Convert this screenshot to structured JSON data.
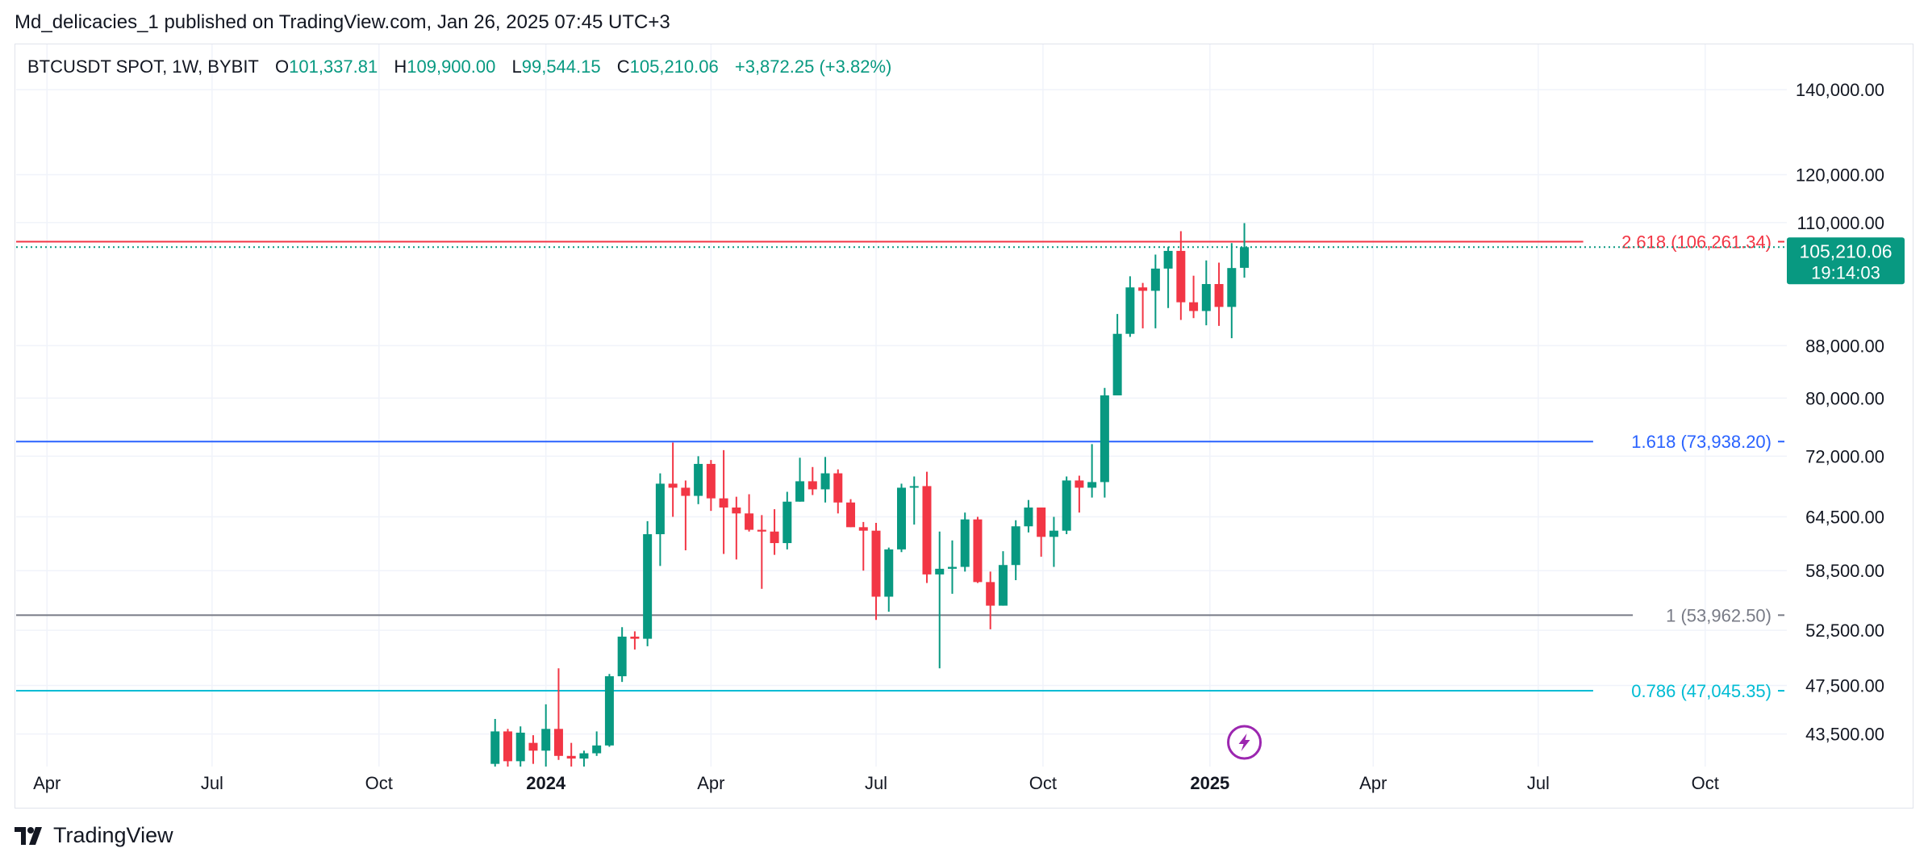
{
  "header": {
    "published": "Md_delicacies_1 published on TradingView.com, Jan 26, 2025 07:45 UTC+3"
  },
  "legend": {
    "symbol": "BTCUSDT SPOT, 1W, BYBIT",
    "o_key": "O",
    "o_val": "101,337.81",
    "h_key": "H",
    "h_val": "109,900.00",
    "l_key": "L",
    "l_val": "99,544.15",
    "c_key": "C",
    "c_val": "105,210.06",
    "change": "+3,872.25 (+3.82%)"
  },
  "price_tag": {
    "price": "105,210.06",
    "countdown": "19:14:03"
  },
  "footer": {
    "brand": "TradingView"
  },
  "colors": {
    "up": "#089981",
    "down": "#f23645",
    "grid": "#f0f3fa",
    "axis_text": "#131722"
  },
  "icons": {
    "event_marker": "lightning-icon",
    "logo": "tradingview-logo-icon"
  },
  "chart_data": {
    "type": "candlestick",
    "title": "",
    "y_scale": "log",
    "ylim": [
      41000,
      152000
    ],
    "y_ticks": [
      {
        "value": 140000,
        "label": "140,000.00"
      },
      {
        "value": 120000,
        "label": "120,000.00"
      },
      {
        "value": 110000,
        "label": "110,000.00"
      },
      {
        "value": 88000,
        "label": "88,000.00"
      },
      {
        "value": 80000,
        "label": "80,000.00"
      },
      {
        "value": 72000,
        "label": "72,000.00"
      },
      {
        "value": 64500,
        "label": "64,500.00"
      },
      {
        "value": 58500,
        "label": "58,500.00"
      },
      {
        "value": 52500,
        "label": "52,500.00"
      },
      {
        "value": 47500,
        "label": "47,500.00"
      },
      {
        "value": 43500,
        "label": "43,500.00"
      }
    ],
    "x_range": [
      "2023-03-15",
      "2025-11-15"
    ],
    "x_ticks": [
      {
        "date": "2023-04-01",
        "label": "Apr",
        "bold": false
      },
      {
        "date": "2023-07-01",
        "label": "Jul",
        "bold": false
      },
      {
        "date": "2023-10-01",
        "label": "Oct",
        "bold": false
      },
      {
        "date": "2024-01-01",
        "label": "2024",
        "bold": true
      },
      {
        "date": "2024-04-01",
        "label": "Apr",
        "bold": false
      },
      {
        "date": "2024-07-01",
        "label": "Jul",
        "bold": false
      },
      {
        "date": "2024-10-01",
        "label": "Oct",
        "bold": false
      },
      {
        "date": "2025-01-01",
        "label": "2025",
        "bold": true
      },
      {
        "date": "2025-04-01",
        "label": "Apr",
        "bold": false
      },
      {
        "date": "2025-07-01",
        "label": "Jul",
        "bold": false
      },
      {
        "date": "2025-10-01",
        "label": "Oct",
        "bold": false
      }
    ],
    "fib_levels": [
      {
        "label": "2.618 (106,261.34)",
        "value": 106261.34,
        "color": "#f23645"
      },
      {
        "label": "1.618 (73,938.20)",
        "value": 73938.2,
        "color": "#2962ff"
      },
      {
        "label": "1 (53,962.50)",
        "value": 53962.5,
        "color": "#787b86"
      },
      {
        "label": "0.786 (47,045.35)",
        "value": 47045.35,
        "color": "#00bcd4"
      }
    ],
    "last_price": 105210.06,
    "event_date": "2025-01-20",
    "candles": [
      {
        "date": "2023-12-04",
        "o": 41200,
        "h": 44700,
        "l": 40800,
        "c": 43700
      },
      {
        "date": "2023-12-11",
        "o": 43700,
        "h": 43900,
        "l": 40700,
        "c": 41400
      },
      {
        "date": "2023-12-18",
        "o": 41400,
        "h": 44100,
        "l": 40800,
        "c": 43600
      },
      {
        "date": "2023-12-25",
        "o": 42800,
        "h": 43400,
        "l": 41200,
        "c": 42200
      },
      {
        "date": "2024-01-01",
        "o": 42200,
        "h": 45900,
        "l": 40800,
        "c": 43900
      },
      {
        "date": "2024-01-08",
        "o": 43900,
        "h": 49000,
        "l": 41500,
        "c": 41800
      },
      {
        "date": "2024-01-15",
        "o": 41800,
        "h": 42800,
        "l": 40800,
        "c": 41600
      },
      {
        "date": "2024-01-22",
        "o": 41600,
        "h": 42200,
        "l": 40500,
        "c": 42000
      },
      {
        "date": "2024-01-29",
        "o": 42000,
        "h": 43700,
        "l": 41800,
        "c": 42600
      },
      {
        "date": "2024-02-05",
        "o": 42600,
        "h": 48500,
        "l": 42500,
        "c": 48300
      },
      {
        "date": "2024-02-12",
        "o": 48300,
        "h": 52800,
        "l": 47800,
        "c": 51900
      },
      {
        "date": "2024-02-19",
        "o": 51900,
        "h": 52400,
        "l": 50700,
        "c": 51700
      },
      {
        "date": "2024-02-26",
        "o": 51700,
        "h": 64000,
        "l": 51000,
        "c": 62500
      },
      {
        "date": "2024-03-04",
        "o": 62500,
        "h": 69800,
        "l": 59000,
        "c": 68500
      },
      {
        "date": "2024-03-11",
        "o": 68500,
        "h": 73800,
        "l": 64500,
        "c": 68000
      },
      {
        "date": "2024-03-18",
        "o": 68000,
        "h": 68900,
        "l": 60700,
        "c": 67000
      },
      {
        "date": "2024-03-25",
        "o": 67000,
        "h": 72000,
        "l": 66000,
        "c": 71000
      },
      {
        "date": "2024-04-01",
        "o": 71000,
        "h": 71500,
        "l": 65200,
        "c": 66700
      },
      {
        "date": "2024-04-08",
        "o": 66700,
        "h": 72800,
        "l": 60300,
        "c": 65600
      },
      {
        "date": "2024-04-15",
        "o": 65600,
        "h": 66900,
        "l": 59700,
        "c": 64900
      },
      {
        "date": "2024-04-22",
        "o": 64900,
        "h": 67200,
        "l": 62800,
        "c": 63000
      },
      {
        "date": "2024-04-29",
        "o": 63000,
        "h": 64700,
        "l": 56600,
        "c": 62800
      },
      {
        "date": "2024-05-06",
        "o": 62800,
        "h": 65400,
        "l": 60200,
        "c": 61500
      },
      {
        "date": "2024-05-13",
        "o": 61500,
        "h": 67500,
        "l": 60800,
        "c": 66300
      },
      {
        "date": "2024-05-20",
        "o": 66300,
        "h": 71800,
        "l": 66300,
        "c": 68800
      },
      {
        "date": "2024-05-27",
        "o": 68800,
        "h": 70600,
        "l": 67100,
        "c": 67800
      },
      {
        "date": "2024-06-03",
        "o": 67800,
        "h": 71900,
        "l": 66200,
        "c": 69800
      },
      {
        "date": "2024-06-10",
        "o": 69800,
        "h": 70300,
        "l": 64900,
        "c": 66200
      },
      {
        "date": "2024-06-17",
        "o": 66200,
        "h": 66600,
        "l": 63300,
        "c": 63300
      },
      {
        "date": "2024-06-24",
        "o": 63300,
        "h": 63900,
        "l": 58500,
        "c": 62900
      },
      {
        "date": "2024-07-01",
        "o": 62900,
        "h": 63800,
        "l": 53500,
        "c": 55800
      },
      {
        "date": "2024-07-08",
        "o": 55800,
        "h": 61000,
        "l": 54300,
        "c": 60800
      },
      {
        "date": "2024-07-15",
        "o": 60800,
        "h": 68500,
        "l": 60500,
        "c": 68000
      },
      {
        "date": "2024-07-22",
        "o": 68000,
        "h": 69400,
        "l": 63600,
        "c": 68200
      },
      {
        "date": "2024-07-29",
        "o": 68200,
        "h": 70000,
        "l": 57200,
        "c": 58100
      },
      {
        "date": "2024-08-05",
        "o": 58100,
        "h": 62800,
        "l": 49000,
        "c": 58700
      },
      {
        "date": "2024-08-12",
        "o": 58700,
        "h": 61800,
        "l": 56100,
        "c": 58900
      },
      {
        "date": "2024-08-19",
        "o": 58900,
        "h": 65000,
        "l": 58400,
        "c": 64200
      },
      {
        "date": "2024-08-26",
        "o": 64200,
        "h": 64500,
        "l": 57200,
        "c": 57300
      },
      {
        "date": "2024-09-02",
        "o": 57300,
        "h": 58400,
        "l": 52600,
        "c": 54900
      },
      {
        "date": "2024-09-09",
        "o": 54900,
        "h": 60600,
        "l": 54900,
        "c": 59100
      },
      {
        "date": "2024-09-16",
        "o": 59100,
        "h": 64100,
        "l": 57500,
        "c": 63400
      },
      {
        "date": "2024-09-23",
        "o": 63400,
        "h": 66500,
        "l": 62700,
        "c": 65600
      },
      {
        "date": "2024-09-30",
        "o": 65600,
        "h": 65600,
        "l": 60000,
        "c": 62200
      },
      {
        "date": "2024-10-07",
        "o": 62200,
        "h": 64500,
        "l": 58900,
        "c": 62900
      },
      {
        "date": "2024-10-14",
        "o": 62900,
        "h": 69400,
        "l": 62500,
        "c": 68900
      },
      {
        "date": "2024-10-21",
        "o": 68900,
        "h": 69500,
        "l": 65000,
        "c": 68000
      },
      {
        "date": "2024-10-28",
        "o": 68000,
        "h": 73600,
        "l": 66800,
        "c": 68700
      },
      {
        "date": "2024-11-04",
        "o": 68700,
        "h": 81500,
        "l": 66800,
        "c": 80400
      },
      {
        "date": "2024-11-11",
        "o": 80400,
        "h": 93200,
        "l": 80400,
        "c": 89900
      },
      {
        "date": "2024-11-18",
        "o": 89900,
        "h": 99800,
        "l": 89400,
        "c": 97800
      },
      {
        "date": "2024-11-25",
        "o": 97800,
        "h": 98600,
        "l": 90800,
        "c": 97200
      },
      {
        "date": "2024-12-02",
        "o": 97200,
        "h": 103800,
        "l": 90800,
        "c": 101200
      },
      {
        "date": "2024-12-09",
        "o": 101200,
        "h": 105300,
        "l": 94200,
        "c": 104500
      },
      {
        "date": "2024-12-16",
        "o": 104500,
        "h": 108300,
        "l": 92200,
        "c": 95200
      },
      {
        "date": "2024-12-23",
        "o": 95200,
        "h": 99900,
        "l": 92500,
        "c": 93700
      },
      {
        "date": "2024-12-30",
        "o": 93700,
        "h": 102700,
        "l": 91300,
        "c": 98400
      },
      {
        "date": "2025-01-06",
        "o": 98400,
        "h": 102300,
        "l": 91200,
        "c": 94400
      },
      {
        "date": "2025-01-13",
        "o": 94400,
        "h": 106000,
        "l": 89200,
        "c": 101300
      },
      {
        "date": "2025-01-20",
        "o": 101337.81,
        "h": 109900.0,
        "l": 99544.15,
        "c": 105210.06
      }
    ]
  }
}
